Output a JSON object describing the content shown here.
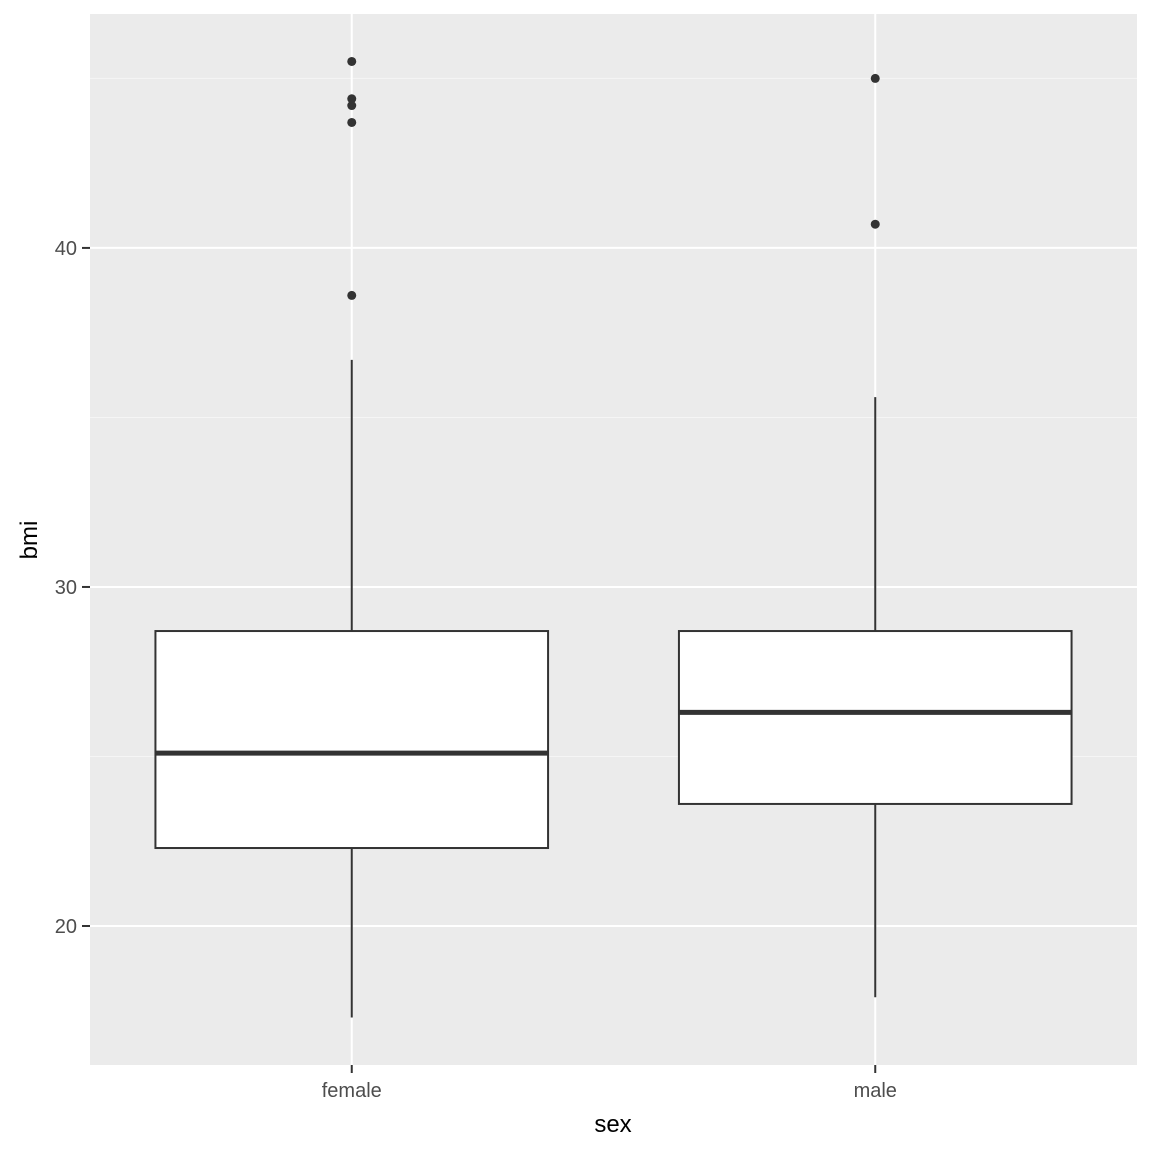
{
  "chart_data": {
    "type": "boxplot",
    "title": "",
    "xlabel": "sex",
    "ylabel": "bmi",
    "categories": [
      "female",
      "male"
    ],
    "ylim": [
      15.9,
      46.9
    ],
    "y_ticks": [
      20,
      30,
      40
    ],
    "y_tick_labels": [
      "20",
      "30",
      "40"
    ],
    "grid": true,
    "legend": "none",
    "boxes": [
      {
        "category": "female",
        "whisker_low": 17.3,
        "q1": 22.3,
        "median": 25.1,
        "q3": 28.7,
        "whisker_high": 36.7,
        "outliers": [
          38.6,
          43.7,
          44.2,
          44.4,
          45.5
        ]
      },
      {
        "category": "male",
        "whisker_low": 17.9,
        "q1": 23.6,
        "median": 26.3,
        "q3": 28.7,
        "whisker_high": 35.6,
        "outliers": [
          40.7,
          45.0
        ]
      }
    ],
    "colors": {
      "panel_background": "#EBEBEB",
      "grid_major": "#FFFFFF",
      "grid_minor": "#F5F5F5",
      "box_fill": "#FFFFFF",
      "box_line": "#333333",
      "tick_text": "#4D4D4D",
      "title_text": "#000000"
    }
  }
}
